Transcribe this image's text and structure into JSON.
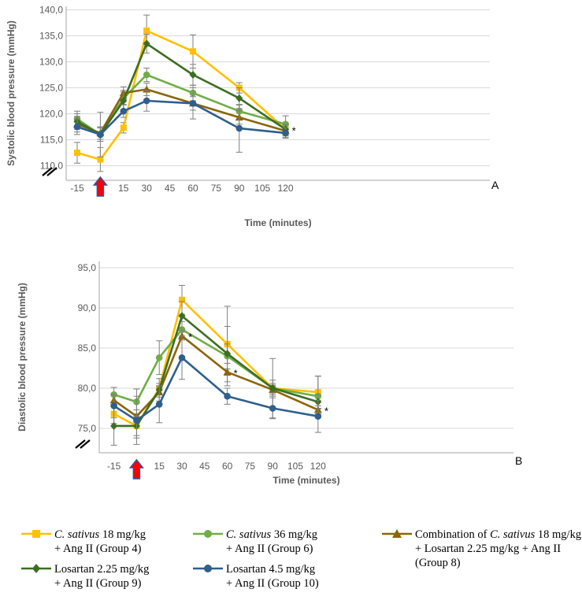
{
  "colors": {
    "group4": "#FFC000",
    "group6": "#70AD47",
    "group8": "#8B6508",
    "group9": "#3B6E22",
    "group10": "#2E5F8E",
    "grid": "#D9D9D9",
    "axis": "#A6A6A6",
    "arrow_fill": "#FF0000",
    "arrow_stroke": "#2F5597"
  },
  "chart_data": [
    {
      "type": "line",
      "panel_label": "A",
      "xlabel": "Time (minutes)",
      "ylabel": "Systolic blood pressure (mmHg)",
      "x": [
        -15,
        0,
        15,
        30,
        60,
        90,
        120
      ],
      "x_ticks": [
        "-15",
        "0",
        "15",
        "30",
        "45",
        "60",
        "75",
        "90",
        "105",
        "120"
      ],
      "y_ticks": [
        "110,0",
        "115,0",
        "120,0",
        "125,0",
        "130,0",
        "135,0",
        "140,0"
      ],
      "ylim": [
        108,
        140
      ],
      "axis_break": true,
      "arrow_at_x": 0,
      "annotations": [
        {
          "text": "*",
          "x": 120,
          "y": 117
        }
      ],
      "series": [
        {
          "name": "C. sativus 18 mg/kg + Ang II (Group 4)",
          "key": "group4",
          "marker": "square",
          "values": [
            112.5,
            111.2,
            117.3,
            136.0,
            132.0,
            125.0,
            117.0
          ],
          "errors": [
            2.0,
            2.3,
            1.0,
            3.0,
            3.2,
            1.0,
            1.2
          ]
        },
        {
          "name": "C. sativus 36 mg/kg + Ang II (Group 6)",
          "key": "group6",
          "marker": "circle",
          "values": [
            119.0,
            116.0,
            123.0,
            127.5,
            124.0,
            120.5,
            118.0
          ],
          "errors": [
            1.5,
            1.3,
            1.2,
            1.3,
            1.5,
            1.2,
            1.6
          ]
        },
        {
          "name": "Combination of C. sativus 18 mg/kg + Losartan 2.25 mg/kg + Ang II (Group 8)",
          "key": "group8",
          "marker": "triangle",
          "values": [
            118.0,
            116.3,
            124.0,
            124.7,
            122.0,
            119.3,
            116.7
          ],
          "errors": [
            1.5,
            1.2,
            1.2,
            1.2,
            1.3,
            1.3,
            1.2
          ]
        },
        {
          "name": "Losartan 2.25 mg/kg + Ang II (Group 9)",
          "key": "group9",
          "marker": "diamond",
          "values": [
            118.5,
            116.0,
            122.5,
            133.5,
            127.5,
            123.0,
            117.0
          ],
          "errors": [
            1.5,
            1.3,
            2.0,
            1.8,
            2.0,
            2.0,
            1.0
          ]
        },
        {
          "name": "Losartan 4.5 mg/kg + Ang II (Group 10)",
          "key": "group10",
          "marker": "circle",
          "values": [
            117.5,
            116.0,
            120.5,
            122.5,
            122.0,
            117.2,
            116.3
          ],
          "errors": [
            1.5,
            4.3,
            1.2,
            2.0,
            3.0,
            4.6,
            1.0
          ]
        }
      ]
    },
    {
      "type": "line",
      "panel_label": "B",
      "xlabel": "Time (minutes)",
      "ylabel": "Diastolic blood pressure (mmHg)",
      "x": [
        -15,
        0,
        15,
        30,
        60,
        90,
        120
      ],
      "x_ticks": [
        "-15",
        "0",
        "15",
        "30",
        "45",
        "60",
        "75",
        "90",
        "105",
        "120"
      ],
      "y_ticks": [
        "75,0",
        "80,0",
        "85,0",
        "90,0",
        "95,0"
      ],
      "ylim": [
        72,
        95
      ],
      "axis_break": true,
      "arrow_at_x": 0,
      "annotations": [
        {
          "text": "*",
          "x": 30,
          "y": 86.5
        },
        {
          "text": "*",
          "x": 60,
          "y": 82.0
        },
        {
          "text": "*",
          "x": 120,
          "y": 77.3
        }
      ],
      "series": [
        {
          "name": "C. sativus 18 mg/kg + Ang II (Group 4)",
          "key": "group4",
          "marker": "square",
          "values": [
            76.8,
            75.3,
            80.0,
            91.0,
            85.5,
            80.0,
            79.5
          ],
          "errors": [
            1.2,
            1.5,
            0.6,
            1.8,
            4.7,
            3.7,
            2.0
          ]
        },
        {
          "name": "C. sativus 36 mg/kg + Ang II (Group 6)",
          "key": "group6",
          "marker": "circle",
          "values": [
            79.2,
            78.3,
            83.8,
            87.3,
            84.0,
            80.0,
            79.0
          ],
          "errors": [
            0.9,
            1.6,
            2.1,
            1.0,
            3.7,
            1.0,
            2.5
          ]
        },
        {
          "name": "Combination of C. sativus 18 mg/kg + Losartan 2.25 mg/kg + Ang II (Group 8)",
          "key": "group8",
          "marker": "triangle",
          "values": [
            78.5,
            76.5,
            79.5,
            86.5,
            82.0,
            79.8,
            77.3
          ],
          "errors": [
            0.6,
            0.8,
            0.6,
            0.5,
            0.4,
            0.6,
            0.5
          ]
        },
        {
          "name": "Losartan 2.25 mg/kg + Ang II (Group 9)",
          "key": "group9",
          "marker": "diamond",
          "values": [
            75.3,
            75.3,
            79.8,
            89.0,
            84.3,
            80.0,
            78.3
          ],
          "errors": [
            2.4,
            1.2,
            1.4,
            1.8,
            1.2,
            0.6,
            0.9
          ]
        },
        {
          "name": "Losartan 4.5 mg/kg + Ang II (Group 10)",
          "key": "group10",
          "marker": "circle",
          "values": [
            77.8,
            76.0,
            78.0,
            83.8,
            79.0,
            77.5,
            76.5
          ],
          "errors": [
            1.5,
            3.0,
            2.3,
            2.7,
            1.0,
            1.3,
            2.0
          ]
        }
      ]
    }
  ],
  "legend": {
    "items": [
      {
        "key": "group4",
        "marker": "square",
        "lines": [
          [
            "C. sativus",
            " 18 mg/kg"
          ],
          [
            "+ Ang II (Group 4)"
          ]
        ]
      },
      {
        "key": "group6",
        "marker": "circle",
        "lines": [
          [
            "C. sativus",
            " 36 mg/kg"
          ],
          [
            "+ Ang II (Group 6)"
          ]
        ]
      },
      {
        "key": "group8",
        "marker": "triangle",
        "lines": [
          [
            "Combination of ",
            "C. sativus",
            " 18 mg/kg"
          ],
          [
            "+ Losartan 2.25 mg/kg + Ang II"
          ],
          [
            "(Group 8)"
          ]
        ]
      },
      {
        "key": "group9",
        "marker": "diamond",
        "lines": [
          [
            "Losartan 2.25 mg/kg"
          ],
          [
            "+ Ang II (Group 9)"
          ]
        ]
      },
      {
        "key": "group10",
        "marker": "circle",
        "lines": [
          [
            "Losartan 4.5 mg/kg"
          ],
          [
            "+ Ang II (Group 10)"
          ]
        ]
      }
    ]
  }
}
